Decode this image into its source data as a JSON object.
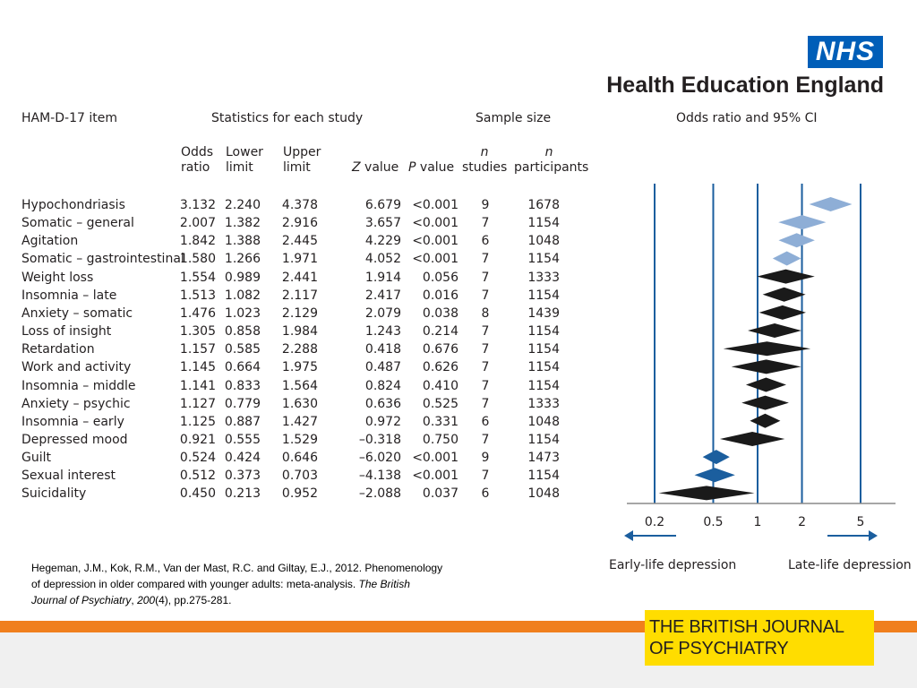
{
  "logo": {
    "nhs_text": "NHS",
    "org_name": "Health Education England",
    "journal_logo_line1": "THE BRITISH JOURNAL",
    "journal_logo_line2": "OF PSYCHIATRY"
  },
  "headers": {
    "item": "HAM-D-17 item",
    "stats": "Statistics for each study",
    "sample": "Sample size",
    "ci": "Odds ratio and 95% CI",
    "odds_ratio": [
      "Odds",
      "ratio"
    ],
    "lower_limit": [
      "Lower",
      "limit"
    ],
    "upper_limit": [
      "Upper",
      "limit"
    ],
    "z_value": [
      "Z",
      " value"
    ],
    "p_value": [
      "P",
      " value"
    ],
    "n_studies": [
      "n",
      "studies"
    ],
    "n_participants": [
      "n",
      "participants"
    ]
  },
  "rows": [
    {
      "item": "Hypochondriasis",
      "or": "3.132",
      "lower": "2.240",
      "upper": "4.378",
      "z": "6.679",
      "p": "<0.001",
      "n_studies": "9",
      "n_participants": "1678",
      "highlight": true
    },
    {
      "item": "Somatic – general",
      "or": "2.007",
      "lower": "1.382",
      "upper": "2.916",
      "z": "3.657",
      "p": "<0.001",
      "n_studies": "7",
      "n_participants": "1154",
      "highlight": true
    },
    {
      "item": "Agitation",
      "or": "1.842",
      "lower": "1.388",
      "upper": "2.445",
      "z": "4.229",
      "p": "<0.001",
      "n_studies": "6",
      "n_participants": "1048",
      "highlight": true
    },
    {
      "item": "Somatic – gastrointestinal",
      "or": "1.580",
      "lower": "1.266",
      "upper": "1.971",
      "z": "4.052",
      "p": "<0.001",
      "n_studies": "7",
      "n_participants": "1154",
      "highlight": true
    },
    {
      "item": "Weight loss",
      "or": "1.554",
      "lower": "0.989",
      "upper": "2.441",
      "z": "1.914",
      "p": "0.056",
      "n_studies": "7",
      "n_participants": "1333",
      "highlight": false
    },
    {
      "item": "Insomnia – late",
      "or": "1.513",
      "lower": "1.082",
      "upper": "2.117",
      "z": "2.417",
      "p": "0.016",
      "n_studies": "7",
      "n_participants": "1154",
      "highlight": false
    },
    {
      "item": "Anxiety – somatic",
      "or": "1.476",
      "lower": "1.023",
      "upper": "2.129",
      "z": "2.079",
      "p": "0.038",
      "n_studies": "8",
      "n_participants": "1439",
      "highlight": false
    },
    {
      "item": "Loss of insight",
      "or": "1.305",
      "lower": "0.858",
      "upper": "1.984",
      "z": "1.243",
      "p": "0.214",
      "n_studies": "7",
      "n_participants": "1154",
      "highlight": false
    },
    {
      "item": "Retardation",
      "or": "1.157",
      "lower": "0.585",
      "upper": "2.288",
      "z": "0.418",
      "p": "0.676",
      "n_studies": "7",
      "n_participants": "1154",
      "highlight": false
    },
    {
      "item": "Work and activity",
      "or": "1.145",
      "lower": "0.664",
      "upper": "1.975",
      "z": "0.487",
      "p": "0.626",
      "n_studies": "7",
      "n_participants": "1154",
      "highlight": false
    },
    {
      "item": "Insomnia – middle",
      "or": "1.141",
      "lower": "0.833",
      "upper": "1.564",
      "z": "0.824",
      "p": "0.410",
      "n_studies": "7",
      "n_participants": "1154",
      "highlight": false
    },
    {
      "item": "Anxiety – psychic",
      "or": "1.127",
      "lower": "0.779",
      "upper": "1.630",
      "z": "0.636",
      "p": "0.525",
      "n_studies": "7",
      "n_participants": "1333",
      "highlight": false
    },
    {
      "item": "Insomnia – early",
      "or": "1.125",
      "lower": "0.887",
      "upper": "1.427",
      "z": "0.972",
      "p": "0.331",
      "n_studies": "6",
      "n_participants": "1048",
      "highlight": false
    },
    {
      "item": "Depressed mood",
      "or": "0.921",
      "lower": "0.555",
      "upper": "1.529",
      "z": "–0.318",
      "p": "0.750",
      "n_studies": "7",
      "n_participants": "1154",
      "highlight": false
    },
    {
      "item": "Guilt",
      "or": "0.524",
      "lower": "0.424",
      "upper": "0.646",
      "z": "–6.020",
      "p": "<0.001",
      "n_studies": "9",
      "n_participants": "1473",
      "highlight": true
    },
    {
      "item": "Sexual interest",
      "or": "0.512",
      "lower": "0.373",
      "upper": "0.703",
      "z": "–4.138",
      "p": "<0.001",
      "n_studies": "7",
      "n_participants": "1154",
      "highlight": true
    },
    {
      "item": "Suicidality",
      "or": "0.450",
      "lower": "0.213",
      "upper": "0.952",
      "z": "–2.088",
      "p": "0.037",
      "n_studies": "6",
      "n_participants": "1048",
      "highlight": false
    }
  ],
  "chart_data": {
    "type": "forest",
    "title": "Odds ratio and 95% CI",
    "xscale": "log",
    "xticks": [
      0.2,
      0.5,
      1,
      2,
      5
    ],
    "xtick_labels": [
      "0.2",
      "0.5",
      "1",
      "2",
      "5"
    ],
    "reference_lines": [
      0.2,
      0.5,
      1,
      2,
      5
    ],
    "left_label": "Early-life depression",
    "right_label": "Late-life depression",
    "colors": {
      "late_significant": "#8eaed6",
      "early_significant": "#1b5e9e",
      "nonsignificant": "#1a1a1a",
      "gridline": "#1b5e9e"
    },
    "categories": [
      "Hypochondriasis",
      "Somatic – general",
      "Agitation",
      "Somatic – gastrointestinal",
      "Weight loss",
      "Insomnia – late",
      "Anxiety – somatic",
      "Loss of insight",
      "Retardation",
      "Work and activity",
      "Insomnia – middle",
      "Anxiety – psychic",
      "Insomnia – early",
      "Depressed mood",
      "Guilt",
      "Sexual interest",
      "Suicidality"
    ],
    "odds_ratio": [
      3.132,
      2.007,
      1.842,
      1.58,
      1.554,
      1.513,
      1.476,
      1.305,
      1.157,
      1.145,
      1.141,
      1.127,
      1.125,
      0.921,
      0.524,
      0.512,
      0.45
    ],
    "lower": [
      2.24,
      1.382,
      1.388,
      1.266,
      0.989,
      1.082,
      1.023,
      0.858,
      0.585,
      0.664,
      0.833,
      0.779,
      0.887,
      0.555,
      0.424,
      0.373,
      0.213
    ],
    "upper": [
      4.378,
      2.916,
      2.445,
      1.971,
      2.441,
      2.117,
      2.129,
      1.984,
      2.288,
      1.975,
      1.564,
      1.63,
      1.427,
      1.529,
      0.646,
      0.703,
      0.952
    ]
  },
  "citation": {
    "text1": "Hegeman, J.M., Kok, R.M., Van der Mast, R.C. and Giltay, E.J., 2012. Phenomenology of depression in older compared with younger adults: meta-analysis. ",
    "journal": "The British Journal of Psychiatry",
    "sep": ", ",
    "volume": "200",
    "text2": "(4), pp.275-281."
  }
}
